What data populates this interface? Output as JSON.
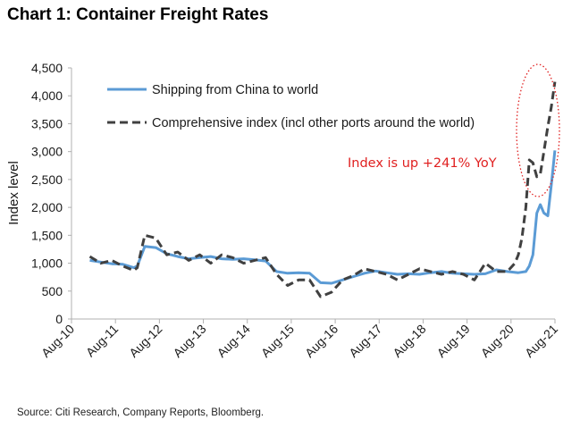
{
  "header": {
    "title": "Chart 1: Container Freight Rates"
  },
  "footer": {
    "source": "Source: Citi Research, Company Reports, Bloomberg."
  },
  "colors": {
    "china": "#5b9bd5",
    "comprehensive": "#404040",
    "annotation": "#e02020",
    "axis": "#b0b0b0"
  },
  "chart_data": {
    "type": "line",
    "title": "Chart 1: Container Freight Rates",
    "ylabel": "Index level",
    "xlabel": "",
    "ylim": [
      0,
      4500
    ],
    "yticks": [
      0,
      500,
      1000,
      1500,
      2000,
      2500,
      3000,
      3500,
      4000,
      4500
    ],
    "ytick_labels": [
      "0",
      "500",
      "1,000",
      "1,500",
      "2,000",
      "2,500",
      "3,000",
      "3,500",
      "4,000",
      "4,500"
    ],
    "xlim": [
      2010.583,
      2021.583
    ],
    "xticks": [
      2010.583,
      2011.583,
      2012.583,
      2013.583,
      2014.583,
      2015.583,
      2016.583,
      2017.583,
      2018.583,
      2019.583,
      2020.583,
      2021.583
    ],
    "xtick_labels": [
      "Aug-10",
      "Aug-11",
      "Aug-12",
      "Aug-13",
      "Aug-14",
      "Aug-15",
      "Aug-16",
      "Aug-17",
      "Aug-18",
      "Aug-19",
      "Aug-20",
      "Aug-21"
    ],
    "legend_position": "top-left",
    "grid": false,
    "series": [
      {
        "name": "Shipping from China to world",
        "style": "solid",
        "x": [
          2011.0,
          2011.25,
          2011.5,
          2011.75,
          2012.0,
          2012.08,
          2012.25,
          2012.5,
          2012.75,
          2013.0,
          2013.25,
          2013.5,
          2013.75,
          2014.0,
          2014.25,
          2014.5,
          2014.75,
          2015.0,
          2015.25,
          2015.5,
          2015.75,
          2016.0,
          2016.25,
          2016.5,
          2016.75,
          2017.0,
          2017.25,
          2017.5,
          2017.75,
          2018.0,
          2018.25,
          2018.5,
          2018.75,
          2019.0,
          2019.25,
          2019.5,
          2019.75,
          2020.0,
          2020.25,
          2020.5,
          2020.75,
          2020.92,
          2021.0,
          2021.08,
          2021.17,
          2021.25,
          2021.33,
          2021.42,
          2021.5,
          2021.58
        ],
        "values": [
          1050,
          1020,
          990,
          980,
          920,
          950,
          1300,
          1280,
          1170,
          1120,
          1080,
          1100,
          1120,
          1080,
          1070,
          1080,
          1060,
          1040,
          850,
          820,
          830,
          820,
          650,
          640,
          700,
          760,
          820,
          860,
          830,
          800,
          810,
          800,
          830,
          850,
          820,
          810,
          800,
          810,
          880,
          850,
          830,
          850,
          950,
          1150,
          1900,
          2050,
          1900,
          1850,
          2400,
          3020
        ]
      },
      {
        "name": "Comprehensive index (incl other ports around the world)",
        "style": "dashed",
        "x": [
          2011.0,
          2011.25,
          2011.5,
          2011.75,
          2012.0,
          2012.08,
          2012.25,
          2012.5,
          2012.75,
          2013.0,
          2013.25,
          2013.5,
          2013.75,
          2014.0,
          2014.25,
          2014.5,
          2014.75,
          2015.0,
          2015.25,
          2015.5,
          2015.75,
          2016.0,
          2016.25,
          2016.5,
          2016.75,
          2017.0,
          2017.25,
          2017.5,
          2017.75,
          2018.0,
          2018.25,
          2018.5,
          2018.75,
          2019.0,
          2019.25,
          2019.5,
          2019.75,
          2020.0,
          2020.25,
          2020.5,
          2020.67,
          2020.75,
          2020.83,
          2020.92,
          2021.0,
          2021.08,
          2021.17,
          2021.25,
          2021.33,
          2021.42,
          2021.5,
          2021.58
        ],
        "values": [
          1120,
          1000,
          1050,
          950,
          870,
          920,
          1500,
          1450,
          1150,
          1200,
          1050,
          1150,
          1000,
          1150,
          1100,
          1000,
          1050,
          1100,
          800,
          600,
          700,
          700,
          400,
          480,
          700,
          780,
          900,
          850,
          800,
          700,
          800,
          900,
          850,
          800,
          850,
          800,
          700,
          1000,
          850,
          850,
          1000,
          1150,
          1450,
          2000,
          2850,
          2800,
          2550,
          2600,
          3000,
          3450,
          3800,
          4250
        ]
      }
    ],
    "annotations": [
      {
        "text": "Index is up +241% YoY"
      }
    ]
  }
}
